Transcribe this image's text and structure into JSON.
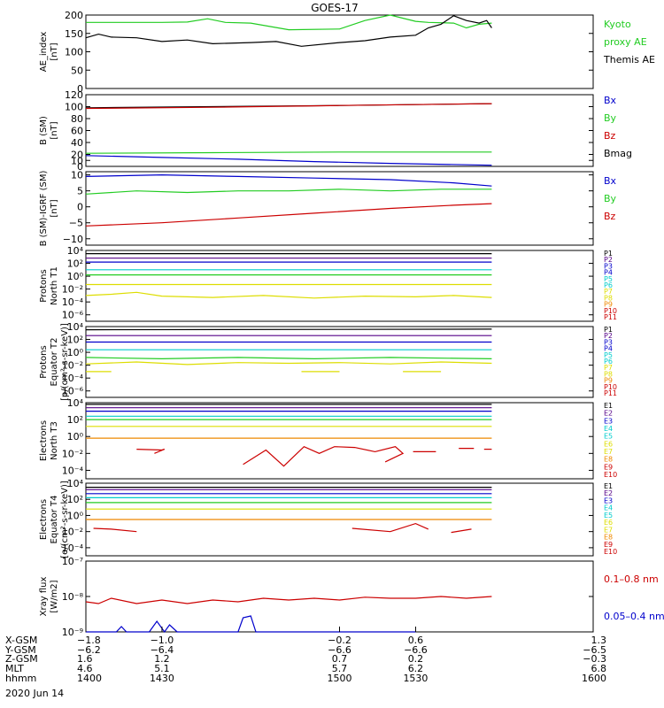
{
  "title": "GOES-17",
  "date": "2020 Jun 14",
  "colors": {
    "black": "#000000",
    "green": "#22cc22",
    "blue": "#0000cc",
    "red": "#cc0000",
    "purple": "#550088",
    "cyan": "#00cccc",
    "yellow": "#dddd00",
    "orange": "#ee8800"
  },
  "chart_data": [
    {
      "id": "ae",
      "type": "line",
      "ylabel": [
        "AE_index",
        "[nT]"
      ],
      "ylim": [
        0,
        200
      ],
      "yscale": "linear",
      "yticks": [
        0,
        50,
        100,
        150,
        200
      ],
      "ytick_labels": [
        "0",
        "50",
        "100",
        "150",
        "200"
      ],
      "legend": [
        "Kyoto",
        "proxy AE",
        "Themis AE"
      ],
      "legend_colors": [
        "green",
        "green",
        "black"
      ],
      "series": [
        {
          "color": "green",
          "x": [
            1400,
            1430,
            1440,
            1448,
            1455,
            1465,
            1480,
            1500,
            1510,
            1520,
            1530,
            1535,
            1545,
            1550,
            1555,
            1560
          ],
          "values": [
            180,
            180,
            181,
            190,
            180,
            178,
            160,
            162,
            185,
            200,
            183,
            180,
            178,
            165,
            175,
            178
          ]
        },
        {
          "color": "black",
          "x": [
            1400,
            1405,
            1410,
            1420,
            1430,
            1440,
            1450,
            1465,
            1475,
            1485,
            1500,
            1510,
            1520,
            1530,
            1535,
            1540,
            1545,
            1550,
            1555,
            1558,
            1560
          ],
          "values": [
            138,
            148,
            140,
            138,
            128,
            132,
            122,
            125,
            128,
            115,
            125,
            130,
            140,
            145,
            165,
            175,
            198,
            185,
            178,
            185,
            165
          ]
        }
      ]
    },
    {
      "id": "bsm",
      "type": "line",
      "ylabel": [
        "B (SM)",
        "[nT]"
      ],
      "ylim": [
        0,
        120
      ],
      "yscale": "linear",
      "yticks": [
        0,
        10,
        20,
        40,
        60,
        80,
        100,
        120
      ],
      "ytick_labels": [
        "0",
        "10",
        "20",
        "40",
        "60",
        "80",
        "100",
        "120"
      ],
      "legend": [
        "Bx",
        "By",
        "Bz",
        "Bmag"
      ],
      "legend_colors": [
        "blue",
        "green",
        "red",
        "black"
      ],
      "series": [
        {
          "color": "black",
          "x": [
            1400,
            1450,
            1500,
            1560
          ],
          "values": [
            98,
            100,
            102,
            105
          ]
        },
        {
          "color": "red",
          "x": [
            1400,
            1450,
            1500,
            1560
          ],
          "values": [
            97,
            99,
            102,
            105
          ]
        },
        {
          "color": "green",
          "x": [
            1400,
            1450,
            1500,
            1560
          ],
          "values": [
            22,
            23,
            24,
            24
          ]
        },
        {
          "color": "blue",
          "x": [
            1400,
            1430,
            1460,
            1490,
            1520,
            1560
          ],
          "values": [
            18,
            15,
            12,
            8,
            5,
            2
          ]
        }
      ]
    },
    {
      "id": "bmigrf",
      "type": "line",
      "ylabel": [
        "B (SM)-IGRF (SM)",
        "[nT]"
      ],
      "ylim": [
        -12,
        11
      ],
      "yscale": "linear",
      "yticks": [
        -10,
        -5,
        0,
        5,
        10
      ],
      "ytick_labels": [
        "−10",
        "−5",
        "0",
        "5",
        "10"
      ],
      "legend": [
        "Bx",
        "By",
        "Bz"
      ],
      "legend_colors": [
        "blue",
        "green",
        "red"
      ],
      "series": [
        {
          "color": "blue",
          "x": [
            1400,
            1430,
            1460,
            1490,
            1520,
            1545,
            1560
          ],
          "values": [
            9.5,
            10,
            9.5,
            9,
            8.5,
            7.5,
            6.5
          ]
        },
        {
          "color": "green",
          "x": [
            1400,
            1420,
            1440,
            1460,
            1480,
            1500,
            1520,
            1540,
            1560
          ],
          "values": [
            4,
            5,
            4.5,
            5,
            5,
            5.5,
            5,
            5.5,
            5.5
          ]
        },
        {
          "color": "red",
          "x": [
            1400,
            1430,
            1460,
            1490,
            1520,
            1545,
            1560
          ],
          "values": [
            -6,
            -5,
            -3.5,
            -2,
            -0.5,
            0.5,
            1
          ]
        }
      ]
    },
    {
      "id": "pnorth",
      "type": "line",
      "ylabel": [
        "Protons",
        "North T1"
      ],
      "ylim": [
        -7,
        4
      ],
      "yscale": "log",
      "yticks": [
        4,
        2,
        0,
        -2,
        -4,
        -6
      ],
      "ytick_labels": [
        "10⁴",
        "10²",
        "10⁰",
        "10⁻²",
        "10⁻⁴",
        "10⁻⁶"
      ],
      "legend": [
        "P1",
        "P2",
        "P3",
        "P4",
        "P5",
        "P6",
        "P7",
        "P8",
        "P9",
        "P10",
        "P11"
      ],
      "legend_colors": [
        "black",
        "purple",
        "blue",
        "blue",
        "cyan",
        "cyan",
        "yellow",
        "yellow",
        "orange",
        "red",
        "red"
      ],
      "series": [
        {
          "color": "black",
          "x": [
            1400,
            1560
          ],
          "values": [
            3.5,
            3.5
          ]
        },
        {
          "color": "purple",
          "x": [
            1400,
            1560
          ],
          "values": [
            2.8,
            2.8
          ]
        },
        {
          "color": "blue",
          "x": [
            1400,
            1560
          ],
          "values": [
            2.2,
            2.2
          ]
        },
        {
          "color": "cyan",
          "x": [
            1400,
            1560
          ],
          "values": [
            1.0,
            1.0
          ]
        },
        {
          "color": "green",
          "x": [
            1400,
            1560
          ],
          "values": [
            0.2,
            0.2
          ]
        },
        {
          "color": "yellow",
          "x": [
            1400,
            1560
          ],
          "values": [
            -1.3,
            -1.3
          ]
        },
        {
          "color": "yellow",
          "x": [
            1400,
            1410,
            1420,
            1430,
            1450,
            1470,
            1490,
            1510,
            1530,
            1545,
            1560
          ],
          "values": [
            -3.0,
            -2.8,
            -2.5,
            -3.1,
            -3.3,
            -3.0,
            -3.4,
            -3.1,
            -3.2,
            -3.0,
            -3.3
          ]
        }
      ]
    },
    {
      "id": "pequator",
      "type": "line",
      "ylabel": [
        "Protons",
        "Equator T2",
        "[p/(cm²-s-sr-keV)]"
      ],
      "ylim": [
        -7,
        4
      ],
      "yscale": "log",
      "yticks": [
        4,
        2,
        0,
        -2,
        -4,
        -6
      ],
      "ytick_labels": [
        "10⁴",
        "10²",
        "10⁰",
        "10⁻²",
        "10⁻⁴",
        "10⁻⁶"
      ],
      "legend": [
        "P1",
        "P2",
        "P3",
        "P4",
        "P5",
        "P6",
        "P7",
        "P8",
        "P9",
        "P10",
        "P11"
      ],
      "legend_colors": [
        "black",
        "purple",
        "blue",
        "blue",
        "cyan",
        "cyan",
        "yellow",
        "yellow",
        "orange",
        "red",
        "red"
      ],
      "series": [
        {
          "color": "black",
          "x": [
            1400,
            1560
          ],
          "values": [
            3.5,
            3.6
          ]
        },
        {
          "color": "purple",
          "x": [
            1400,
            1560
          ],
          "values": [
            2.6,
            2.6
          ]
        },
        {
          "color": "blue",
          "x": [
            1400,
            1560
          ],
          "values": [
            1.6,
            1.6
          ]
        },
        {
          "color": "cyan",
          "x": [
            1400,
            1560
          ],
          "values": [
            0.4,
            0.4
          ]
        },
        {
          "color": "green",
          "x": [
            1400,
            1430,
            1460,
            1490,
            1520,
            1560
          ],
          "values": [
            -0.8,
            -1.0,
            -0.8,
            -1.0,
            -0.8,
            -1.0
          ]
        },
        {
          "color": "yellow",
          "x": [
            1400,
            1420,
            1440,
            1460,
            1480,
            1500,
            1520,
            1540,
            1560
          ],
          "values": [
            -1.8,
            -1.5,
            -1.9,
            -1.6,
            -1.7,
            -1.6,
            -1.8,
            -1.5,
            -1.7
          ]
        },
        {
          "color": "yellow",
          "x": [
            1400,
            1410
          ],
          "values": [
            -3.0,
            -3.0
          ]
        },
        {
          "color": "yellow",
          "x": [
            1485,
            1500
          ],
          "values": [
            -3.0,
            -3.0
          ]
        },
        {
          "color": "yellow",
          "x": [
            1525,
            1540
          ],
          "values": [
            -3.0,
            -3.0
          ]
        }
      ]
    },
    {
      "id": "enorth",
      "type": "line",
      "ylabel": [
        "Electrons",
        "North T3"
      ],
      "ylim": [
        -5,
        4
      ],
      "yscale": "log",
      "yticks": [
        4,
        2,
        0,
        -2,
        -4
      ],
      "ytick_labels": [
        "10⁴",
        "10²",
        "10⁰",
        "10⁻²",
        "10⁻⁴"
      ],
      "legend": [
        "E1",
        "E2",
        "E3",
        "E4",
        "E5",
        "E6",
        "E7",
        "E8",
        "E9",
        "E10"
      ],
      "legend_colors": [
        "black",
        "purple",
        "blue",
        "cyan",
        "cyan",
        "yellow",
        "yellow",
        "orange",
        "red",
        "red"
      ],
      "series": [
        {
          "color": "black",
          "x": [
            1400,
            1560
          ],
          "values": [
            3.8,
            3.8
          ]
        },
        {
          "color": "purple",
          "x": [
            1400,
            1560
          ],
          "values": [
            3.4,
            3.4
          ]
        },
        {
          "color": "blue",
          "x": [
            1400,
            1560
          ],
          "values": [
            3.0,
            3.0
          ]
        },
        {
          "color": "cyan",
          "x": [
            1400,
            1560
          ],
          "values": [
            2.4,
            2.4
          ]
        },
        {
          "color": "green",
          "x": [
            1400,
            1560
          ],
          "values": [
            2.0,
            2.0
          ]
        },
        {
          "color": "yellow",
          "x": [
            1400,
            1560
          ],
          "values": [
            1.2,
            1.2
          ]
        },
        {
          "color": "orange",
          "x": [
            1400,
            1560
          ],
          "values": [
            -0.2,
            -0.2
          ]
        },
        {
          "color": "red",
          "x": [
            1420,
            1430,
            1431,
            1427
          ],
          "values": [
            -1.5,
            -1.6,
            -1.5,
            -2.0
          ]
        },
        {
          "color": "red",
          "x": [
            1462,
            1471,
            1478,
            1486,
            1492,
            1498,
            1506,
            1514,
            1522,
            1525,
            1518
          ],
          "values": [
            -3.3,
            -1.6,
            -3.5,
            -1.2,
            -2.0,
            -1.2,
            -1.3,
            -1.8,
            -1.2,
            -2.0,
            -3.0
          ]
        },
        {
          "color": "red",
          "x": [
            1529,
            1538
          ],
          "values": [
            -1.8,
            -1.8
          ]
        },
        {
          "color": "red",
          "x": [
            1547,
            1553
          ],
          "values": [
            -1.4,
            -1.4
          ]
        },
        {
          "color": "red",
          "x": [
            1557,
            1560
          ],
          "values": [
            -1.5,
            -1.5
          ]
        }
      ]
    },
    {
      "id": "eequator",
      "type": "line",
      "ylabel": [
        "Electrons",
        "Equator T4",
        "[e/(cm²-s-sr-keV)]"
      ],
      "ylim": [
        -5,
        4
      ],
      "yscale": "log",
      "yticks": [
        4,
        2,
        0,
        -2,
        -4
      ],
      "ytick_labels": [
        "10⁴",
        "10²",
        "10⁰",
        "10⁻²",
        "10⁻⁴"
      ],
      "legend": [
        "E1",
        "E2",
        "E3",
        "E4",
        "E5",
        "E6",
        "E7",
        "E8",
        "E9",
        "E10"
      ],
      "legend_colors": [
        "black",
        "purple",
        "blue",
        "cyan",
        "cyan",
        "yellow",
        "yellow",
        "orange",
        "red",
        "red"
      ],
      "series": [
        {
          "color": "black",
          "x": [
            1400,
            1560
          ],
          "values": [
            3.5,
            3.5
          ]
        },
        {
          "color": "purple",
          "x": [
            1400,
            1560
          ],
          "values": [
            3.2,
            3.2
          ]
        },
        {
          "color": "blue",
          "x": [
            1400,
            1560
          ],
          "values": [
            2.7,
            2.7
          ]
        },
        {
          "color": "cyan",
          "x": [
            1400,
            1560
          ],
          "values": [
            2.2,
            2.2
          ]
        },
        {
          "color": "green",
          "x": [
            1400,
            1560
          ],
          "values": [
            1.6,
            1.6
          ]
        },
        {
          "color": "yellow",
          "x": [
            1400,
            1560
          ],
          "values": [
            0.8,
            0.8
          ]
        },
        {
          "color": "orange",
          "x": [
            1400,
            1560
          ],
          "values": [
            -0.5,
            -0.5
          ]
        },
        {
          "color": "red",
          "x": [
            1403,
            1410,
            1420
          ],
          "values": [
            -1.6,
            -1.7,
            -2.0
          ]
        },
        {
          "color": "red",
          "x": [
            1505,
            1520,
            1530,
            1535
          ],
          "values": [
            -1.6,
            -2.0,
            -1.0,
            -1.7
          ]
        },
        {
          "color": "red",
          "x": [
            1544,
            1552
          ],
          "values": [
            -2.1,
            -1.7
          ]
        }
      ]
    },
    {
      "id": "xray",
      "type": "line",
      "ylabel": [
        "Xray flux",
        "[W/m2]"
      ],
      "ylim": [
        -9,
        -7
      ],
      "yscale": "log",
      "yticks": [
        -7,
        -8,
        -9
      ],
      "ytick_labels": [
        "10⁻⁷",
        "10⁻⁸",
        "10⁻⁹"
      ],
      "legend": [
        "0.1–0.8 nm",
        "0.05–0.4 nm"
      ],
      "legend_colors": [
        "red",
        "blue"
      ],
      "series": [
        {
          "color": "red",
          "x": [
            1400,
            1405,
            1410,
            1420,
            1430,
            1440,
            1450,
            1460,
            1470,
            1480,
            1490,
            1500,
            1510,
            1520,
            1530,
            1540,
            1550,
            1560
          ],
          "values": [
            -8.15,
            -8.2,
            -8.05,
            -8.2,
            -8.1,
            -8.2,
            -8.1,
            -8.15,
            -8.05,
            -8.1,
            -8.05,
            -8.1,
            -8.02,
            -8.05,
            -8.05,
            -8.0,
            -8.05,
            -8.0
          ]
        },
        {
          "color": "blue",
          "x": [
            1400,
            1412,
            1414,
            1416,
            1425,
            1428,
            1431,
            1433,
            1436,
            1439,
            1460,
            1462,
            1465,
            1467,
            1470,
            1530
          ],
          "values": [
            -9,
            -9,
            -8.85,
            -9,
            -9,
            -8.7,
            -9,
            -8.8,
            -9,
            -9,
            -9,
            -8.6,
            -8.55,
            -9,
            -9,
            -9
          ]
        }
      ]
    }
  ],
  "xaxis": {
    "xlim": [
      1400,
      1600
    ],
    "tick_x": [
      1400,
      1430,
      1500,
      1530,
      1600
    ],
    "row_labels": [
      "X-GSM",
      "Y-GSM",
      "Z-GSM",
      "MLT",
      "hhmm"
    ],
    "rows": [
      [
        "−1.8",
        "−1.0",
        "−0.2",
        "0.6",
        "1.3"
      ],
      [
        "−6.2",
        "−6.4",
        "−6.6",
        "−6.6",
        "−6.5"
      ],
      [
        "1.6",
        "1.2",
        "0.7",
        "0.2",
        "−0.3"
      ],
      [
        "4.6",
        "5.1",
        "5.7",
        "6.2",
        "6.8"
      ],
      [
        "1400",
        "1430",
        "1500",
        "1530",
        "1600"
      ]
    ]
  }
}
